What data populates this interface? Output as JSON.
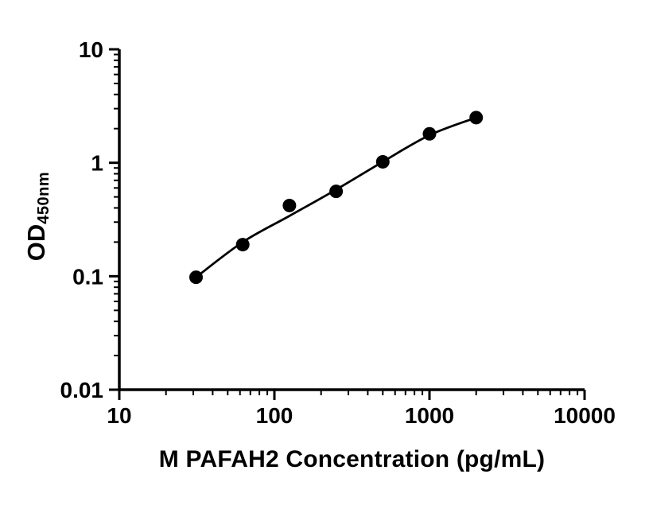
{
  "chart_data": {
    "type": "scatter",
    "title": "",
    "xlabel": "M PAFAH2 Concentration (pg/mL)",
    "ylabel_main": "OD",
    "ylabel_sub": "450nm",
    "x_scale": "log",
    "y_scale": "log",
    "xlim": [
      10,
      10000
    ],
    "ylim": [
      0.01,
      10
    ],
    "x_ticks": [
      10,
      100,
      1000,
      10000
    ],
    "x_tick_labels": [
      "10",
      "100",
      "1000",
      "10000"
    ],
    "y_ticks": [
      0.01,
      0.1,
      1,
      10
    ],
    "y_tick_labels": [
      "0.01",
      "0.1",
      "1",
      "10"
    ],
    "grid": false,
    "legend": false,
    "point_color": "#000000",
    "line_color": "#000000",
    "axis_color": "#000000",
    "background": "#ffffff",
    "points": [
      {
        "x": 31.25,
        "y": 0.098
      },
      {
        "x": 62.5,
        "y": 0.19
      },
      {
        "x": 125,
        "y": 0.42
      },
      {
        "x": 250,
        "y": 0.56
      },
      {
        "x": 500,
        "y": 1.02
      },
      {
        "x": 1000,
        "y": 1.8
      },
      {
        "x": 2000,
        "y": 2.5
      }
    ],
    "fit_curve": [
      {
        "x": 31.25,
        "y": 0.098
      },
      {
        "x": 62.5,
        "y": 0.2
      },
      {
        "x": 125,
        "y": 0.34
      },
      {
        "x": 250,
        "y": 0.58
      },
      {
        "x": 500,
        "y": 1.02
      },
      {
        "x": 1000,
        "y": 1.75
      },
      {
        "x": 2000,
        "y": 2.5
      }
    ]
  }
}
